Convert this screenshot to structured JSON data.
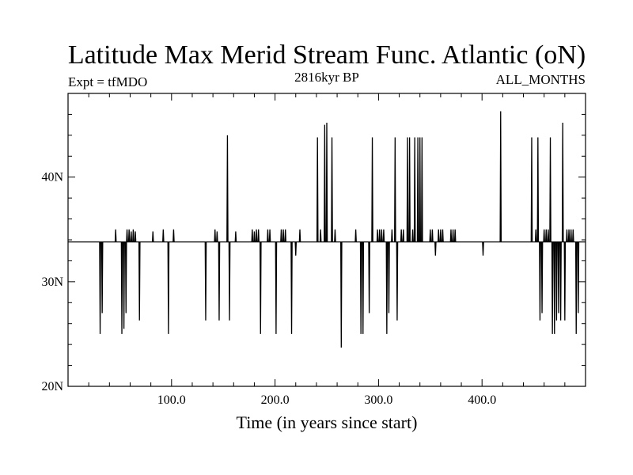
{
  "chart_data": {
    "type": "line",
    "title": "Latitude Max Merid Stream Func. Atlantic (oN)",
    "left_label": "Expt = tfMDO",
    "center_label": "2816kyr BP",
    "right_label": "ALL_MONTHS",
    "xlabel": "Time (in years since start)",
    "ylabel": "",
    "xlim": [
      0,
      500
    ],
    "ylim": [
      20,
      48
    ],
    "x_ticks": [
      {
        "value": 100,
        "label": "100.0"
      },
      {
        "value": 200,
        "label": "200.0"
      },
      {
        "value": 300,
        "label": "300.0"
      },
      {
        "value": 400,
        "label": "400.0"
      }
    ],
    "y_ticks": [
      {
        "value": 20,
        "label": "20N"
      },
      {
        "value": 30,
        "label": "30N"
      },
      {
        "value": 40,
        "label": "40N"
      }
    ],
    "grid": false,
    "series": [
      {
        "color": "#000000",
        "baseline": 33.8,
        "events": [
          [
            31,
            25.0
          ],
          [
            33,
            27.0
          ],
          [
            46,
            35.0
          ],
          [
            52,
            25.0
          ],
          [
            54,
            25.5
          ],
          [
            56,
            27.0
          ],
          [
            57,
            35.0
          ],
          [
            59,
            35.0
          ],
          [
            61,
            34.8
          ],
          [
            63,
            35.0
          ],
          [
            65,
            34.8
          ],
          [
            69,
            26.3
          ],
          [
            82,
            34.8
          ],
          [
            92,
            35.0
          ],
          [
            97,
            25.0
          ],
          [
            102,
            35.0
          ],
          [
            133,
            26.3
          ],
          [
            142,
            35.0
          ],
          [
            144,
            34.8
          ],
          [
            146,
            26.3
          ],
          [
            154,
            44.0
          ],
          [
            156,
            26.3
          ],
          [
            162,
            34.8
          ],
          [
            178,
            35.0
          ],
          [
            180,
            34.8
          ],
          [
            182,
            35.0
          ],
          [
            184,
            35.0
          ],
          [
            186,
            25.0
          ],
          [
            193,
            35.0
          ],
          [
            195,
            35.0
          ],
          [
            201,
            25.0
          ],
          [
            206,
            35.0
          ],
          [
            208,
            35.0
          ],
          [
            210,
            35.0
          ],
          [
            216,
            25.0
          ],
          [
            220,
            32.5
          ],
          [
            224,
            35.0
          ],
          [
            241,
            43.8
          ],
          [
            244,
            35.0
          ],
          [
            248,
            45.0
          ],
          [
            250,
            45.2
          ],
          [
            255,
            43.8
          ],
          [
            258,
            35.0
          ],
          [
            264,
            23.7
          ],
          [
            278,
            35.0
          ],
          [
            283,
            25.0
          ],
          [
            285,
            25.0
          ],
          [
            291,
            27.0
          ],
          [
            294,
            43.8
          ],
          [
            299,
            35.0
          ],
          [
            301,
            35.0
          ],
          [
            303,
            35.0
          ],
          [
            305,
            35.0
          ],
          [
            308,
            25.0
          ],
          [
            310,
            27.0
          ],
          [
            313,
            35.0
          ],
          [
            316,
            43.8
          ],
          [
            318,
            26.3
          ],
          [
            322,
            35.0
          ],
          [
            324,
            35.0
          ],
          [
            328,
            43.8
          ],
          [
            330,
            43.8
          ],
          [
            333,
            35.0
          ],
          [
            335,
            43.8
          ],
          [
            338,
            43.8
          ],
          [
            340,
            43.8
          ],
          [
            342,
            43.8
          ],
          [
            350,
            35.0
          ],
          [
            352,
            35.0
          ],
          [
            355,
            32.5
          ],
          [
            358,
            35.0
          ],
          [
            360,
            35.0
          ],
          [
            362,
            35.0
          ],
          [
            370,
            35.0
          ],
          [
            372,
            35.0
          ],
          [
            374,
            35.0
          ],
          [
            401,
            32.5
          ],
          [
            418,
            46.3
          ],
          [
            448,
            43.8
          ],
          [
            452,
            35.0
          ],
          [
            454,
            43.8
          ],
          [
            456,
            26.3
          ],
          [
            458,
            27.0
          ],
          [
            460,
            35.0
          ],
          [
            462,
            35.0
          ],
          [
            464,
            35.0
          ],
          [
            466,
            43.8
          ],
          [
            468,
            25.0
          ],
          [
            470,
            25.0
          ],
          [
            472,
            26.3
          ],
          [
            474,
            27.0
          ],
          [
            476,
            26.3
          ],
          [
            478,
            45.2
          ],
          [
            480,
            26.3
          ],
          [
            482,
            35.0
          ],
          [
            484,
            35.0
          ],
          [
            486,
            35.0
          ],
          [
            488,
            35.0
          ],
          [
            491,
            25.0
          ],
          [
            493,
            27.0
          ]
        ]
      }
    ]
  }
}
